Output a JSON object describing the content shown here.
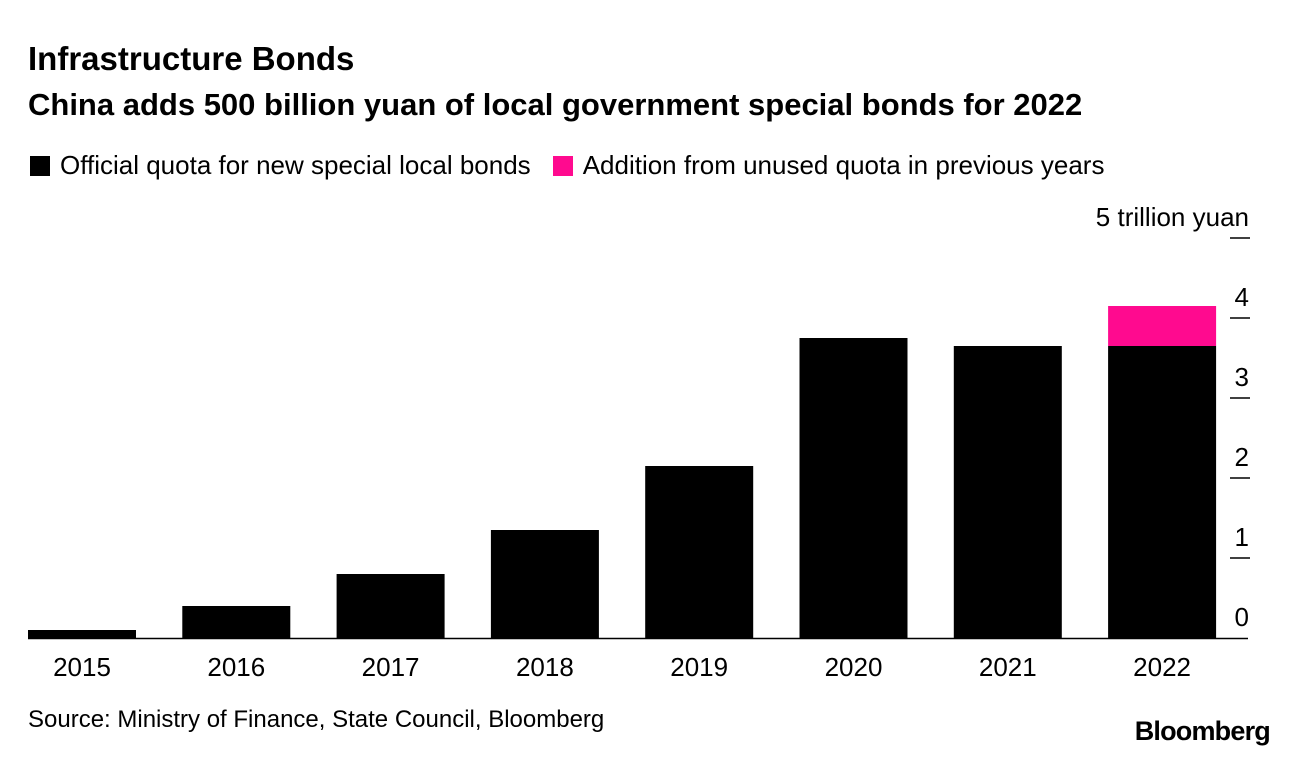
{
  "header": {
    "title": "Infrastructure Bonds",
    "subtitle": "China adds 500 billion yuan of local government special bonds for 2022"
  },
  "legend": [
    {
      "label": "Official quota for new special local bonds",
      "color": "#000000"
    },
    {
      "label": "Addition from unused quota in previous years",
      "color": "#ff0a8f"
    }
  ],
  "footer": {
    "source": "Source: Ministry of Finance, State Council, Bloomberg",
    "logo": "Bloomberg"
  },
  "chart_data": {
    "type": "bar",
    "stacked": true,
    "categories": [
      "2015",
      "2016",
      "2017",
      "2018",
      "2019",
      "2020",
      "2021",
      "2022"
    ],
    "series": [
      {
        "name": "Official quota for new special local bonds",
        "color": "#000000",
        "values": [
          0.1,
          0.4,
          0.8,
          1.35,
          2.15,
          3.75,
          3.65,
          3.65
        ]
      },
      {
        "name": "Addition from unused quota in previous years",
        "color": "#ff0a8f",
        "values": [
          0,
          0,
          0,
          0,
          0,
          0,
          0,
          0.5
        ]
      }
    ],
    "ylim": [
      0,
      5
    ],
    "yticks": [
      0,
      1,
      2,
      3,
      4,
      5
    ],
    "ytick_labels": [
      "0",
      "1",
      "2",
      "3",
      "4",
      "5 trillion yuan"
    ],
    "yaxis_position": "right",
    "grid": false,
    "legend_position": "top-left"
  }
}
